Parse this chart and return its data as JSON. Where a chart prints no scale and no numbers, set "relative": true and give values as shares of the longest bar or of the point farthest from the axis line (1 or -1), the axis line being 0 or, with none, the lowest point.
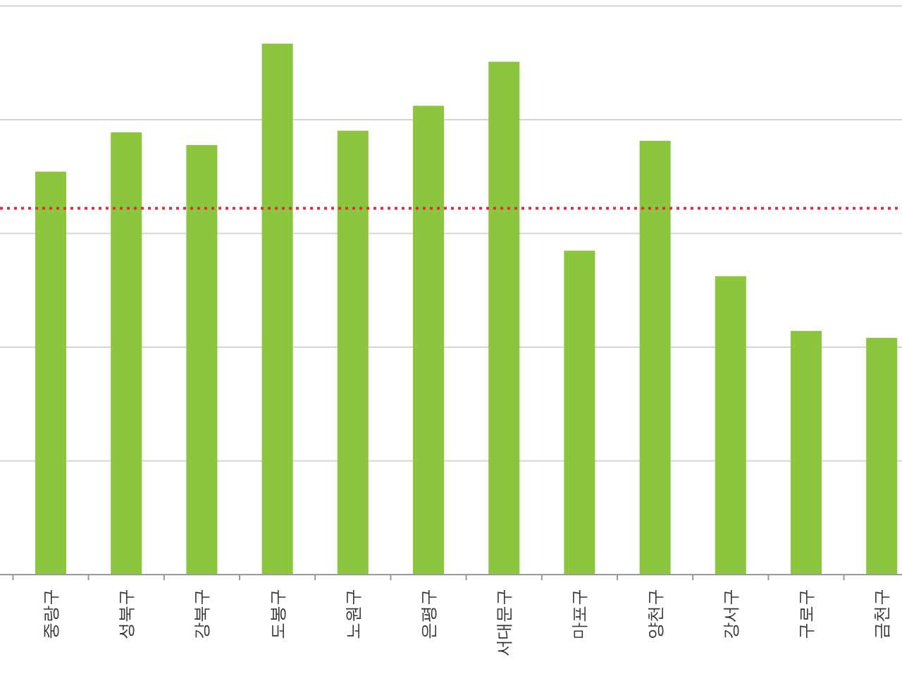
{
  "chart_data": {
    "type": "bar",
    "relative": true,
    "color": "#8cc63e",
    "grid": "y",
    "categories": [
      "중랑구",
      "성북구",
      "강북구",
      "도봉구",
      "노원구",
      "은평구",
      "서대문구",
      "마포구",
      "양천구",
      "강서구",
      "구로구",
      "금천구"
    ],
    "values": [
      0.759,
      0.833,
      0.809,
      1,
      0.836,
      0.883,
      0.966,
      0.61,
      0.817,
      0.562,
      0.459,
      0.446
    ],
    "ref_lines": [
      {
        "axis": "y",
        "value": 0.69,
        "color": "#e0303a",
        "line_style": "dotted"
      }
    ]
  }
}
